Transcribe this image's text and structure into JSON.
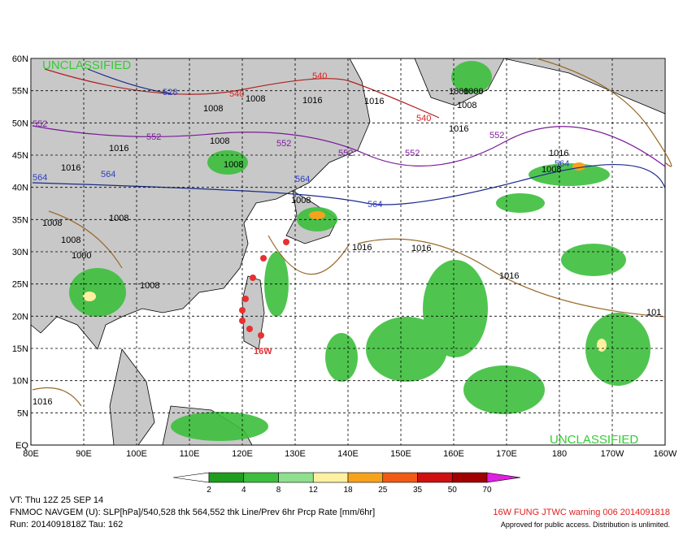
{
  "map": {
    "classification_top": "UNCLASSIFIED",
    "classification_bottom": "UNCLASSIFIED",
    "lat_labels": [
      "EQ",
      "5N",
      "10N",
      "15N",
      "20N",
      "25N",
      "30N",
      "35N",
      "40N",
      "45N",
      "50N",
      "55N",
      "60N"
    ],
    "lon_labels": [
      "80E",
      "90E",
      "100E",
      "110E",
      "120E",
      "130E",
      "140E",
      "150E",
      "160E",
      "170E",
      "180",
      "170W",
      "160W"
    ],
    "contour_labels": [
      "540",
      "540",
      "540",
      "528",
      "552",
      "552",
      "552",
      "552",
      "552",
      "552",
      "564",
      "564",
      "564",
      "564",
      "564",
      "1008",
      "1008",
      "1016",
      "1016",
      "1016",
      "1016",
      "1008",
      "1008",
      "1008",
      "1000",
      "1000",
      "1008",
      "1016",
      "1008",
      "1016",
      "1000",
      "1016",
      "1008",
      "1008",
      "1008",
      "1016",
      "1016",
      "1008",
      "1016",
      "101"
    ],
    "storm_label": "16W",
    "colorbar": {
      "levels": [
        "2",
        "4",
        "8",
        "12",
        "18",
        "25",
        "35",
        "50",
        "70"
      ],
      "colors": [
        "#ffffff",
        "#1e9e1e",
        "#3cbf3c",
        "#8ee08e",
        "#fff0a0",
        "#f7a21b",
        "#f05a14",
        "#d01010",
        "#a00000",
        "#e020e0"
      ]
    },
    "footer": {
      "valid_time": "VT: Thu 12Z 25 SEP 14",
      "product": "FNMOC NAVGEM (U): SLP[hPa]/540,528 thk 564,552 thk Line/Prev 6hr Prcp Rate [mm/6hr]",
      "run": "Run: 2014091818Z Tau: 162",
      "warning": "16W FUNG JTWC warning 006 2014091818",
      "release": "Approved for public access. Distribution is unlimited."
    }
  }
}
